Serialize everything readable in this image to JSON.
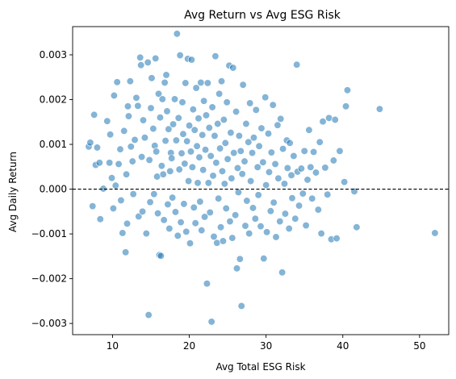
{
  "chart_data": {
    "type": "scatter",
    "title": "Avg Return vs Avg ESG Risk",
    "xlabel": "Avg Total ESG Risk",
    "ylabel": "Avg Daily Return",
    "xlim": [
      4.8,
      53.8
    ],
    "ylim": [
      -0.00325,
      0.00363
    ],
    "x_ticks": [
      10,
      20,
      30,
      40,
      50
    ],
    "x_tick_labels": [
      "10",
      "20",
      "30",
      "40",
      "50"
    ],
    "y_ticks": [
      -0.003,
      -0.002,
      -0.001,
      0.0,
      0.001,
      0.002,
      0.003
    ],
    "y_tick_labels": [
      "−0.003",
      "−0.002",
      "−0.001",
      "0.000",
      "0.001",
      "0.002",
      "0.003"
    ],
    "reference_line": {
      "y": 0.0,
      "style": "dashed",
      "color": "#000000"
    },
    "grid": false,
    "marker_color": "#1f77b4",
    "marker_alpha": 0.55,
    "marker_edge_color": "#ffffff",
    "series": [
      {
        "values": [
          [
            6.9,
            0.00095
          ],
          [
            7.1,
            0.00104
          ],
          [
            7.4,
            -0.00038
          ],
          [
            7.6,
            0.00166
          ],
          [
            7.8,
            0.00054
          ],
          [
            8.0,
            0.00093
          ],
          [
            8.3,
            0.00059
          ],
          [
            8.4,
            -0.00067
          ],
          [
            8.8,
            1e-05
          ],
          [
            9.3,
            0.00152
          ],
          [
            9.7,
            0.00122
          ],
          [
            9.6,
            0.00059
          ],
          [
            9.9,
            0.00025
          ],
          [
            10.2,
            0.00209
          ],
          [
            10.4,
            8e-05
          ],
          [
            10.1,
            -0.00043
          ],
          [
            10.6,
            0.00239
          ],
          [
            10.8,
            0.00056
          ],
          [
            11.0,
            0.00089
          ],
          [
            11.1,
            -0.00025
          ],
          [
            11.3,
            -0.00098
          ],
          [
            11.5,
            0.0013
          ],
          [
            11.7,
            -0.00141
          ],
          [
            11.8,
            0.00033
          ],
          [
            11.9,
            -0.00077
          ],
          [
            12.0,
            0.00185
          ],
          [
            12.1,
            0.00163
          ],
          [
            12.3,
            0.00241
          ],
          [
            12.4,
            0.00095
          ],
          [
            12.6,
            0.00062
          ],
          [
            12.7,
            -0.00011
          ],
          [
            12.9,
            0.0011
          ],
          [
            13.1,
            0.00204
          ],
          [
            13.3,
            0.00186
          ],
          [
            13.4,
            -0.00061
          ],
          [
            13.6,
            0.00294
          ],
          [
            13.7,
            0.00277
          ],
          [
            13.8,
            0.00072
          ],
          [
            13.9,
            -0.0005
          ],
          [
            14.0,
            0.00154
          ],
          [
            14.2,
            0.00115
          ],
          [
            14.4,
            -0.00099
          ],
          [
            14.6,
            0.00283
          ],
          [
            14.7,
            -0.00281
          ],
          [
            14.8,
            0.00065
          ],
          [
            14.9,
            -0.00029
          ],
          [
            15.0,
            0.00181
          ],
          [
            15.1,
            0.00248
          ],
          [
            15.3,
            0.00135
          ],
          [
            15.4,
            -0.00011
          ],
          [
            15.5,
            0.00097
          ],
          [
            15.6,
            0.00292
          ],
          [
            15.7,
            0.00084
          ],
          [
            15.8,
            0.00028
          ],
          [
            15.9,
            -0.00054
          ],
          [
            16.0,
            0.00213
          ],
          [
            16.1,
            -0.00147
          ],
          [
            16.2,
            0.0016
          ],
          [
            16.3,
            -0.00149
          ],
          [
            16.4,
            0.00052
          ],
          [
            16.5,
            0.00201
          ],
          [
            16.6,
            0.00033
          ],
          [
            16.7,
            -0.00069
          ],
          [
            16.8,
            0.00238
          ],
          [
            16.9,
            0.00108
          ],
          [
            17.0,
            0.00255
          ],
          [
            17.1,
            0.00174
          ],
          [
            17.2,
            -0.00034
          ],
          [
            17.3,
            0.00134
          ],
          [
            17.4,
            -0.00088
          ],
          [
            17.5,
            0.0004
          ],
          [
            17.6,
            0.00081
          ],
          [
            17.7,
            0.00069
          ],
          [
            17.8,
            -0.00019
          ],
          [
            17.9,
            0.00145
          ],
          [
            18.1,
            0.00201
          ],
          [
            18.2,
            -0.00051
          ],
          [
            18.3,
            0.00109
          ],
          [
            18.4,
            0.00347
          ],
          [
            18.5,
            -0.00104
          ],
          [
            18.6,
            0.00159
          ],
          [
            18.7,
            0.00044
          ],
          [
            18.8,
            0.00299
          ],
          [
            18.9,
            -0.00074
          ],
          [
            19.0,
            0.0008
          ],
          [
            19.1,
            0.00194
          ],
          [
            19.2,
            0.00123
          ],
          [
            19.3,
            -0.00033
          ],
          [
            19.4,
            0.00057
          ],
          [
            19.5,
            0.00237
          ],
          [
            19.6,
            -0.00095
          ],
          [
            19.7,
            0.00107
          ],
          [
            19.8,
            0.00291
          ],
          [
            19.9,
            0.00018
          ],
          [
            20.0,
            0.00142
          ],
          [
            20.1,
            -0.00121
          ],
          [
            20.2,
            0.00084
          ],
          [
            20.3,
            0.00289
          ],
          [
            20.4,
            0.00049
          ],
          [
            20.5,
            0.00178
          ],
          [
            20.6,
            -0.00041
          ],
          [
            20.7,
            0.00132
          ],
          [
            20.8,
            -0.00076
          ],
          [
            20.9,
            0.00226
          ],
          [
            21.0,
            0.00096
          ],
          [
            21.1,
            0.00014
          ],
          [
            21.2,
            0.00158
          ],
          [
            21.3,
            0.00071
          ],
          [
            21.4,
            -0.00028
          ],
          [
            21.5,
            0.00238
          ],
          [
            21.6,
            -0.00092
          ],
          [
            21.7,
            0.00121
          ],
          [
            21.8,
            0.00043
          ],
          [
            21.9,
            0.00197
          ],
          [
            22.0,
            -0.00062
          ],
          [
            22.1,
            0.00088
          ],
          [
            22.2,
            0.00165
          ],
          [
            22.3,
            -0.00211
          ],
          [
            22.4,
            0.00237
          ],
          [
            22.5,
            0.00014
          ],
          [
            22.6,
            0.00137
          ],
          [
            22.7,
            -0.00052
          ],
          [
            22.8,
            0.00074
          ],
          [
            22.9,
            -0.00296
          ],
          [
            23.0,
            0.00183
          ],
          [
            23.1,
            0.0003
          ],
          [
            23.2,
            -0.00106
          ],
          [
            23.3,
            0.00119
          ],
          [
            23.4,
            0.00297
          ],
          [
            23.5,
            0.00059
          ],
          [
            23.6,
            -0.0012
          ],
          [
            23.7,
            0.00146
          ],
          [
            23.8,
            -0.00021
          ],
          [
            23.9,
            0.00213
          ],
          [
            24.0,
            0.00091
          ],
          [
            24.1,
            -0.00085
          ],
          [
            24.2,
            0.00241
          ],
          [
            24.3,
            0.0004
          ],
          [
            24.4,
            -0.00116
          ],
          [
            24.5,
            0.00155
          ],
          [
            24.6,
            0.00012
          ],
          [
            24.7,
            0.00103
          ],
          [
            24.8,
            -0.00043
          ],
          [
            24.9,
            0.00194
          ],
          [
            25.0,
            0.00067
          ],
          [
            25.2,
            0.00276
          ],
          [
            25.3,
            -0.00072
          ],
          [
            25.4,
            0.00126
          ],
          [
            25.5,
            0.00024
          ],
          [
            25.6,
            -0.00109
          ],
          [
            25.7,
            0.00271
          ],
          [
            25.8,
            0.00081
          ],
          [
            26.0,
            -0.00058
          ],
          [
            26.1,
            0.00173
          ],
          [
            26.2,
            -0.00177
          ],
          [
            26.3,
            0.00047
          ],
          [
            26.4,
            -7e-05
          ],
          [
            26.5,
            0.00119
          ],
          [
            26.6,
            -0.00156
          ],
          [
            26.7,
            0.00085
          ],
          [
            26.8,
            -0.00261
          ],
          [
            26.9,
            0.00034
          ],
          [
            27.0,
            0.00233
          ],
          [
            27.2,
            0.00062
          ],
          [
            27.3,
            -0.00082
          ],
          [
            27.4,
            0.00146
          ],
          [
            27.5,
            -0.00026
          ],
          [
            27.7,
            0.00105
          ],
          [
            27.8,
            -0.00099
          ],
          [
            27.9,
            0.00192
          ],
          [
            28.0,
            0.00018
          ],
          [
            28.2,
            0.00081
          ],
          [
            28.3,
            -0.00042
          ],
          [
            28.4,
            0.00115
          ],
          [
            28.6,
            -0.00066
          ],
          [
            28.7,
            0.00177
          ],
          [
            28.9,
            0.00049
          ],
          [
            29.0,
            -0.00013
          ],
          [
            29.1,
            0.00096
          ],
          [
            29.3,
            -0.00083
          ],
          [
            29.4,
            0.00136
          ],
          [
            29.6,
            0.0006
          ],
          [
            29.7,
            -0.00155
          ],
          [
            29.9,
            0.00205
          ],
          [
            30.0,
            9e-05
          ],
          [
            30.1,
            -0.00096
          ],
          [
            30.3,
            0.00124
          ],
          [
            30.4,
            0.00038
          ],
          [
            30.6,
            -0.00049
          ],
          [
            30.7,
            0.00082
          ],
          [
            30.9,
            0.00188
          ],
          [
            31.0,
            -0.0003
          ],
          [
            31.2,
            0.00056
          ],
          [
            31.3,
            -0.00107
          ],
          [
            31.5,
            0.00143
          ],
          [
            31.6,
            0.00024
          ],
          [
            31.8,
            -0.00072
          ],
          [
            31.9,
            0.00157
          ],
          [
            32.1,
            -0.00186
          ],
          [
            32.2,
            0.0009
          ],
          [
            32.4,
            0.00012
          ],
          [
            32.5,
            -0.00055
          ],
          [
            32.7,
            0.00109
          ],
          [
            32.8,
            0.00047
          ],
          [
            33.0,
            -0.00088
          ],
          [
            33.1,
            0.00103
          ],
          [
            33.3,
            0.00031
          ],
          [
            33.4,
            -0.0002
          ],
          [
            33.6,
            0.00074
          ],
          [
            33.8,
            -0.00066
          ],
          [
            34.0,
            0.00278
          ],
          [
            34.1,
            0.00039
          ],
          [
            34.3,
            -0.00037
          ],
          [
            34.6,
            0.00046
          ],
          [
            34.8,
            -0.0001
          ],
          [
            35.0,
            0.00085
          ],
          [
            35.2,
            -0.00081
          ],
          [
            35.4,
            0.00021
          ],
          [
            35.6,
            0.00132
          ],
          [
            35.8,
            0.00049
          ],
          [
            36.0,
            -0.00021
          ],
          [
            36.2,
            0.00083
          ],
          [
            36.5,
            0.00037
          ],
          [
            36.8,
            -0.00046
          ],
          [
            37.0,
            0.00105
          ],
          [
            37.2,
            -0.00099
          ],
          [
            37.4,
            0.00151
          ],
          [
            37.7,
            0.00048
          ],
          [
            38.0,
            -0.00012
          ],
          [
            38.2,
            0.00159
          ],
          [
            38.5,
            -0.00112
          ],
          [
            38.8,
            0.00064
          ],
          [
            39.0,
            0.00155
          ],
          [
            39.2,
            -0.0011
          ],
          [
            39.6,
            0.00085
          ],
          [
            40.2,
            0.00016
          ],
          [
            40.4,
            0.00185
          ],
          [
            40.6,
            0.00221
          ],
          [
            41.5,
            -5e-05
          ],
          [
            41.8,
            -0.00085
          ],
          [
            44.8,
            0.00179
          ],
          [
            52.0,
            -0.00098
          ]
        ]
      }
    ]
  }
}
